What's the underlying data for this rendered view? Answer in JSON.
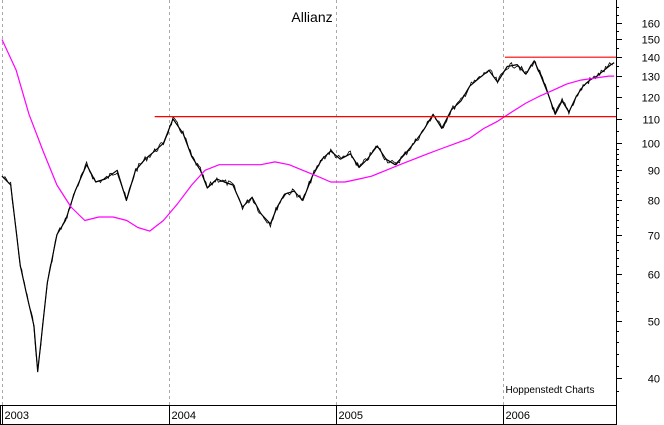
{
  "chart_data": {
    "type": "line",
    "title": "Allianz",
    "credit": "Hoppenstedt Charts",
    "xlabel": "",
    "ylabel": "",
    "y_scale": "log",
    "ylim": [
      36,
      175
    ],
    "xlim": [
      "2003-01-01",
      "2006-09-05"
    ],
    "grid": "vertical dashed at year boundaries",
    "x_ticks": [
      {
        "date": "2003-01-01",
        "label": "2003"
      },
      {
        "date": "2004-01-01",
        "label": "2004"
      },
      {
        "date": "2005-01-01",
        "label": "2005"
      },
      {
        "date": "2006-01-01",
        "label": "2006"
      }
    ],
    "y_ticks": [
      40,
      50,
      60,
      70,
      80,
      90,
      100,
      110,
      120,
      130,
      140,
      150,
      160
    ],
    "colors": {
      "price": "#000000",
      "moving_average": "#ff00ff",
      "resistance": "#ff0000",
      "grid": "#aaaaaa"
    },
    "series": [
      {
        "role": "price",
        "x": [
          "2003-01-01",
          "2003-01-20",
          "2003-02-10",
          "2003-02-25",
          "2003-03-12",
          "2003-03-20",
          "2003-04-10",
          "2003-05-01",
          "2003-05-20",
          "2003-06-10",
          "2003-07-05",
          "2003-07-25",
          "2003-08-15",
          "2003-09-10",
          "2003-09-30",
          "2003-10-20",
          "2003-11-10",
          "2003-12-01",
          "2003-12-20",
          "2004-01-10",
          "2004-02-01",
          "2004-02-20",
          "2004-03-10",
          "2004-03-25",
          "2004-04-15",
          "2004-05-01",
          "2004-05-20",
          "2004-06-10",
          "2004-07-01",
          "2004-07-20",
          "2004-08-10",
          "2004-08-25",
          "2004-09-10",
          "2004-10-01",
          "2004-10-20",
          "2004-11-10",
          "2004-12-01",
          "2004-12-20",
          "2005-01-10",
          "2005-02-01",
          "2005-02-20",
          "2005-03-10",
          "2005-04-01",
          "2005-04-20",
          "2005-05-10",
          "2005-06-01",
          "2005-06-20",
          "2005-07-10",
          "2005-08-01",
          "2005-08-20",
          "2005-09-10",
          "2005-10-01",
          "2005-10-20",
          "2005-11-10",
          "2005-12-01",
          "2005-12-20",
          "2006-01-10",
          "2006-02-01",
          "2006-02-20",
          "2006-03-10",
          "2006-03-25",
          "2006-04-10",
          "2006-04-25",
          "2006-05-10",
          "2006-05-25",
          "2006-06-10",
          "2006-06-25",
          "2006-07-10",
          "2006-07-25",
          "2006-08-10",
          "2006-08-25",
          "2006-09-01"
        ],
        "values": [
          88,
          85,
          62,
          55,
          49,
          41,
          58,
          70,
          74,
          83,
          92,
          86,
          87,
          90,
          80,
          90,
          94,
          97,
          100,
          110,
          104,
          95,
          90,
          84,
          87,
          86,
          85,
          78,
          81,
          76,
          73,
          78,
          82,
          83,
          80,
          88,
          94,
          97,
          94,
          96,
          91,
          94,
          99,
          94,
          92,
          96,
          100,
          105,
          112,
          106,
          114,
          118,
          125,
          129,
          133,
          127,
          135,
          136,
          131,
          138,
          130,
          121,
          112,
          118,
          113,
          120,
          125,
          128,
          130,
          133,
          136,
          137
        ]
      },
      {
        "role": "moving_average",
        "x": [
          "2003-01-01",
          "2003-02-01",
          "2003-03-01",
          "2003-04-01",
          "2003-05-01",
          "2003-06-01",
          "2003-07-01",
          "2003-08-01",
          "2003-09-01",
          "2003-10-01",
          "2003-10-25",
          "2003-11-20",
          "2003-12-20",
          "2004-01-20",
          "2004-02-20",
          "2004-03-20",
          "2004-04-20",
          "2004-05-20",
          "2004-06-20",
          "2004-07-20",
          "2004-08-20",
          "2004-09-20",
          "2004-10-20",
          "2004-11-20",
          "2004-12-20",
          "2005-01-20",
          "2005-02-20",
          "2005-03-20",
          "2005-04-20",
          "2005-05-20",
          "2005-06-20",
          "2005-07-20",
          "2005-08-20",
          "2005-09-20",
          "2005-10-20",
          "2005-11-20",
          "2005-12-20",
          "2006-01-20",
          "2006-02-20",
          "2006-03-20",
          "2006-04-20",
          "2006-05-20",
          "2006-06-20",
          "2006-07-20",
          "2006-08-20",
          "2006-09-01"
        ],
        "values": [
          150,
          133,
          112,
          97,
          85,
          78,
          74,
          75,
          75,
          74,
          72,
          71,
          74,
          79,
          85,
          90,
          92,
          92,
          92,
          92,
          93,
          92,
          90,
          88,
          86,
          86,
          87,
          88,
          90,
          92,
          94,
          96,
          98,
          100,
          102,
          106,
          109,
          113,
          117,
          120,
          123,
          126,
          128,
          129,
          130,
          130
        ]
      },
      {
        "role": "resistance",
        "x": [
          "2003-12-01",
          "2006-09-05"
        ],
        "values": [
          111,
          111
        ]
      },
      {
        "role": "resistance",
        "x": [
          "2006-01-05",
          "2006-09-05"
        ],
        "values": [
          140,
          140
        ]
      }
    ]
  }
}
